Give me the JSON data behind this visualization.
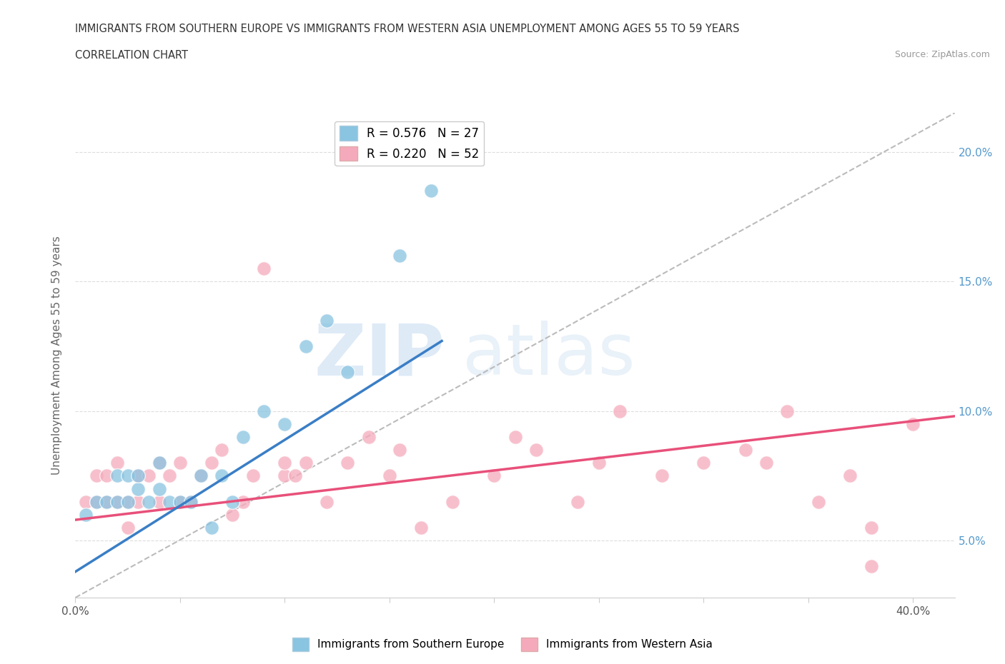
{
  "title_line1": "IMMIGRANTS FROM SOUTHERN EUROPE VS IMMIGRANTS FROM WESTERN ASIA UNEMPLOYMENT AMONG AGES 55 TO 59 YEARS",
  "title_line2": "CORRELATION CHART",
  "source_text": "Source: ZipAtlas.com",
  "ylabel": "Unemployment Among Ages 55 to 59 years",
  "xlim": [
    0.0,
    0.42
  ],
  "ylim": [
    0.028,
    0.215
  ],
  "x_ticks": [
    0.0,
    0.05,
    0.1,
    0.15,
    0.2,
    0.25,
    0.3,
    0.35,
    0.4
  ],
  "y_ticks": [
    0.05,
    0.1,
    0.15,
    0.2
  ],
  "y_tick_labels_right": [
    "5.0%",
    "10.0%",
    "15.0%",
    "20.0%"
  ],
  "legend_r1": "R = 0.576",
  "legend_n1": "N = 27",
  "legend_r2": "R = 0.220",
  "legend_n2": "N = 52",
  "color_blue": "#89C4E1",
  "color_pink": "#F5AABB",
  "color_blue_line": "#3A7EC6",
  "color_pink_line": "#E8507A",
  "color_dashed": "#BBBBBB",
  "blue_scatter_x": [
    0.005,
    0.01,
    0.015,
    0.02,
    0.02,
    0.025,
    0.025,
    0.03,
    0.03,
    0.035,
    0.04,
    0.04,
    0.045,
    0.05,
    0.055,
    0.06,
    0.065,
    0.07,
    0.075,
    0.08,
    0.09,
    0.1,
    0.11,
    0.12,
    0.13,
    0.155,
    0.17
  ],
  "blue_scatter_y": [
    0.06,
    0.065,
    0.065,
    0.065,
    0.075,
    0.065,
    0.075,
    0.07,
    0.075,
    0.065,
    0.07,
    0.08,
    0.065,
    0.065,
    0.065,
    0.075,
    0.055,
    0.075,
    0.065,
    0.09,
    0.1,
    0.095,
    0.125,
    0.135,
    0.115,
    0.16,
    0.185
  ],
  "pink_scatter_x": [
    0.005,
    0.01,
    0.01,
    0.015,
    0.015,
    0.02,
    0.02,
    0.025,
    0.025,
    0.03,
    0.03,
    0.035,
    0.04,
    0.04,
    0.045,
    0.05,
    0.05,
    0.055,
    0.06,
    0.065,
    0.07,
    0.075,
    0.08,
    0.085,
    0.09,
    0.1,
    0.1,
    0.105,
    0.11,
    0.12,
    0.13,
    0.14,
    0.15,
    0.155,
    0.165,
    0.18,
    0.2,
    0.21,
    0.22,
    0.24,
    0.25,
    0.26,
    0.28,
    0.3,
    0.32,
    0.33,
    0.34,
    0.355,
    0.37,
    0.38,
    0.38,
    0.4
  ],
  "pink_scatter_y": [
    0.065,
    0.075,
    0.065,
    0.075,
    0.065,
    0.065,
    0.08,
    0.065,
    0.055,
    0.065,
    0.075,
    0.075,
    0.08,
    0.065,
    0.075,
    0.08,
    0.065,
    0.065,
    0.075,
    0.08,
    0.085,
    0.06,
    0.065,
    0.075,
    0.155,
    0.075,
    0.08,
    0.075,
    0.08,
    0.065,
    0.08,
    0.09,
    0.075,
    0.085,
    0.055,
    0.065,
    0.075,
    0.09,
    0.085,
    0.065,
    0.08,
    0.1,
    0.075,
    0.08,
    0.085,
    0.08,
    0.1,
    0.065,
    0.075,
    0.055,
    0.04,
    0.095
  ],
  "blue_line_x": [
    0.0,
    0.175
  ],
  "blue_line_y": [
    0.038,
    0.127
  ],
  "pink_line_x": [
    0.0,
    0.42
  ],
  "pink_line_y": [
    0.058,
    0.098
  ],
  "dashed_line_x": [
    0.0,
    0.42
  ],
  "dashed_line_y": [
    0.028,
    0.215
  ],
  "watermark_text": "ZIP",
  "watermark_text2": "atlas",
  "bg_color": "#FFFFFF"
}
